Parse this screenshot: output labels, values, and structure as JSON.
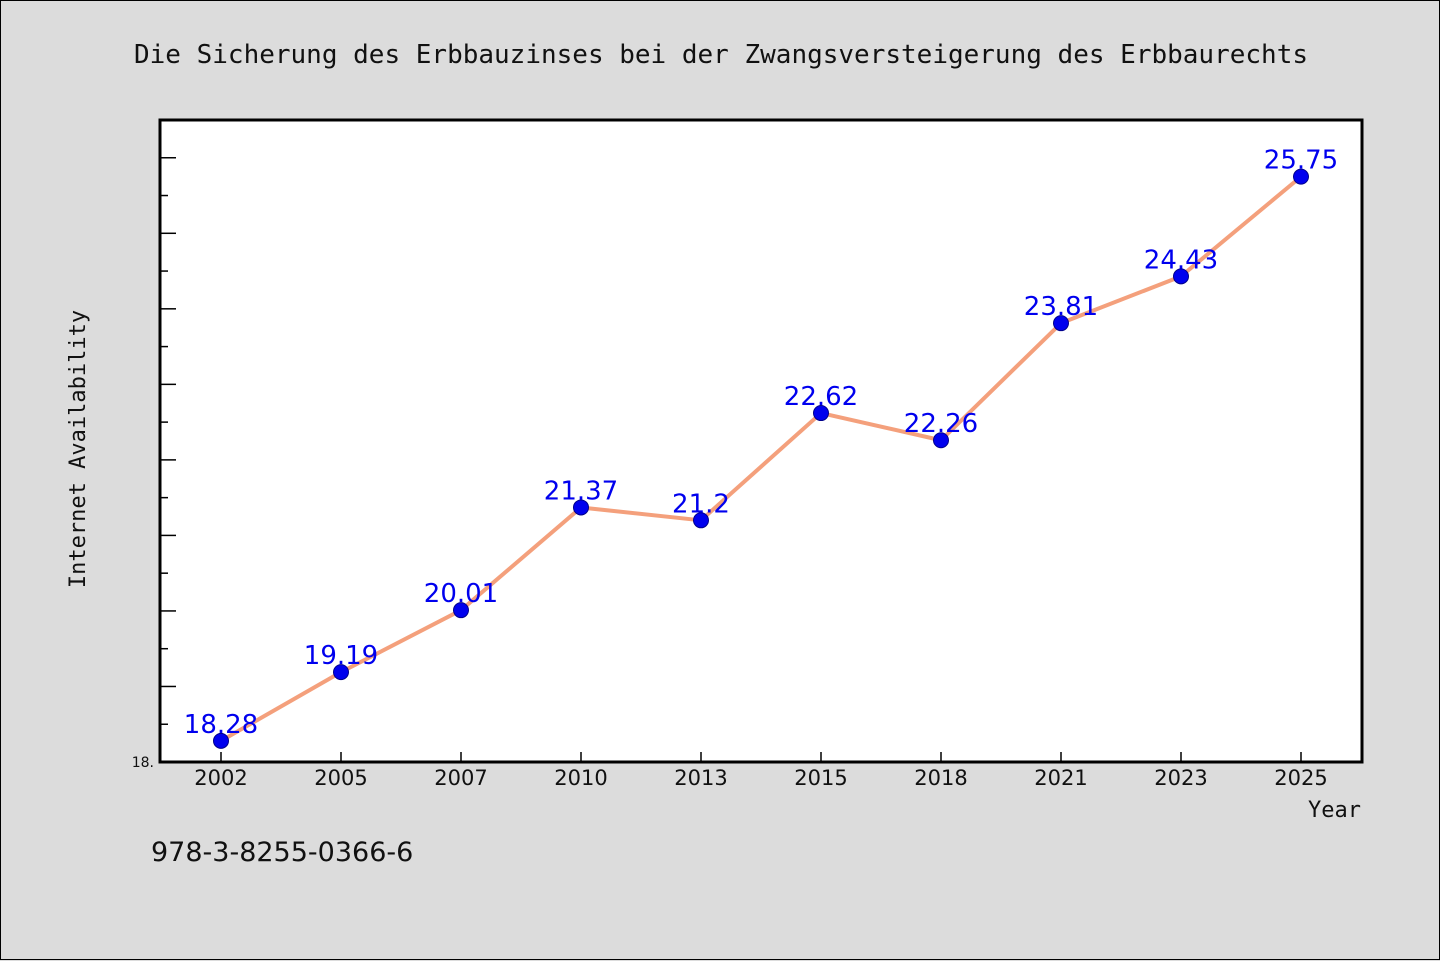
{
  "colors": {
    "background": "#dcdcdc",
    "plot_background": "#ffffff",
    "line": "#f4a07c",
    "marker": "#0000ee",
    "data_label": "#0000ee",
    "axis": "#000000"
  },
  "footer_text": "978-3-8255-0366-6",
  "chart_data": {
    "type": "line",
    "title": "Die Sicherung des Erbbauzinses bei der Zwangsversteigerung des Erbbaurechts",
    "xlabel": "Year",
    "ylabel": "Internet Availability",
    "y_min_label": "18.",
    "ylim": [
      18.0,
      26.5
    ],
    "x": [
      "2002",
      "2005",
      "2007",
      "2010",
      "2013",
      "2015",
      "2018",
      "2021",
      "2023",
      "2025"
    ],
    "series": [
      {
        "values": [
          18.28,
          19.19,
          20.01,
          21.37,
          21.2,
          22.62,
          22.26,
          23.81,
          24.43,
          25.75
        ],
        "labels": [
          "18.28",
          "19.19",
          "20.01",
          "21.37",
          "21.2",
          "22.62",
          "22.26",
          "23.81",
          "24.43",
          "25.75"
        ]
      }
    ],
    "grid": false,
    "legend": "none"
  }
}
